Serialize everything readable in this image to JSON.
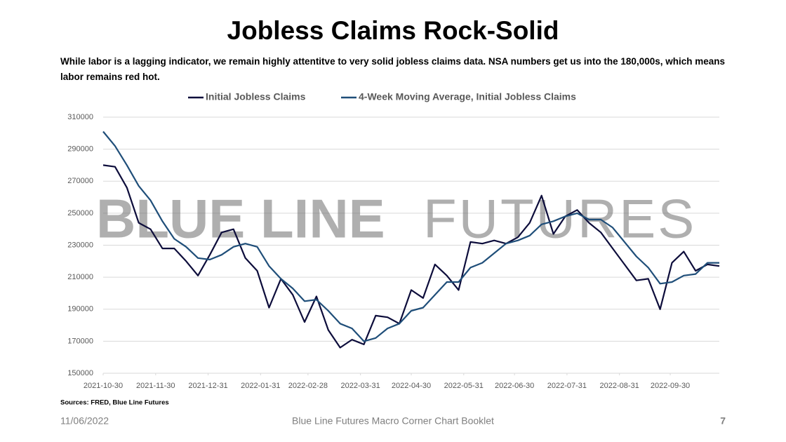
{
  "chart_data": {
    "type": "line",
    "title": "Jobless Claims Rock-Solid",
    "subtitle": "While labor is a lagging indicator, we remain highly attentitve to very solid jobless claims data. NSA numbers get us into the 180,000s, which means labor remains red hot.",
    "source": "Sources: FRED, Blue Line Futures",
    "watermark": [
      "BLUE LINE",
      "FUTURES"
    ],
    "x": [
      "2021-10-30",
      "2021-11-06",
      "2021-11-13",
      "2021-11-20",
      "2021-11-27",
      "2021-12-04",
      "2021-12-11",
      "2021-12-18",
      "2021-12-25",
      "2022-01-01",
      "2022-01-08",
      "2022-01-15",
      "2022-01-22",
      "2022-01-29",
      "2022-02-05",
      "2022-02-12",
      "2022-02-19",
      "2022-02-26",
      "2022-03-05",
      "2022-03-12",
      "2022-03-19",
      "2022-03-26",
      "2022-04-02",
      "2022-04-09",
      "2022-04-16",
      "2022-04-23",
      "2022-04-30",
      "2022-05-07",
      "2022-05-14",
      "2022-05-21",
      "2022-05-28",
      "2022-06-04",
      "2022-06-11",
      "2022-06-18",
      "2022-06-25",
      "2022-07-02",
      "2022-07-09",
      "2022-07-16",
      "2022-07-23",
      "2022-07-30",
      "2022-08-06",
      "2022-08-13",
      "2022-08-20",
      "2022-08-27",
      "2022-09-03",
      "2022-09-10",
      "2022-09-17",
      "2022-09-24",
      "2022-10-01",
      "2022-10-08",
      "2022-10-15",
      "2022-10-22",
      "2022-10-29"
    ],
    "series": [
      {
        "name": "Initial Jobless Claims",
        "color": "#0d0d3b",
        "values": [
          280000,
          279000,
          266000,
          244000,
          240000,
          228000,
          228000,
          220000,
          211000,
          224000,
          238000,
          240000,
          222000,
          214000,
          191000,
          209000,
          199000,
          182000,
          198000,
          177000,
          166000,
          171000,
          168000,
          186000,
          185000,
          181000,
          202000,
          197000,
          218000,
          211000,
          202000,
          232000,
          231000,
          233000,
          231000,
          235000,
          244000,
          261000,
          237000,
          248000,
          252000,
          244000,
          238000,
          228000,
          218000,
          208000,
          209000,
          190000,
          219000,
          226000,
          214000,
          218000,
          217000
        ]
      },
      {
        "name": "4-Week Moving Average, Initial Jobless Claims",
        "color": "#1f4e79",
        "values": [
          301000,
          292000,
          280000,
          267000,
          258000,
          245000,
          234000,
          229000,
          222000,
          221000,
          224000,
          229000,
          231000,
          229000,
          217000,
          209000,
          203000,
          195000,
          196000,
          189000,
          181000,
          178000,
          170000,
          172000,
          178000,
          181000,
          189000,
          191000,
          199000,
          207000,
          207000,
          216000,
          219000,
          225000,
          231000,
          233000,
          236000,
          243000,
          245000,
          248000,
          250000,
          246000,
          246000,
          241000,
          232000,
          223000,
          216000,
          206000,
          207000,
          211000,
          212000,
          219000,
          219000
        ]
      }
    ],
    "xlim": [
      "2021-10-30",
      "2022-10-29"
    ],
    "xticks": [
      "2021-10-30",
      "2021-11-30",
      "2021-12-31",
      "2022-01-31",
      "2022-02-28",
      "2022-03-31",
      "2022-04-30",
      "2022-05-31",
      "2022-06-30",
      "2022-07-31",
      "2022-08-31",
      "2022-09-30"
    ],
    "ylim": [
      150000,
      310000
    ],
    "yticks": [
      150000,
      170000,
      190000,
      210000,
      230000,
      250000,
      270000,
      290000,
      310000
    ],
    "grid": true,
    "legend": "top"
  },
  "footer": {
    "date": "11/06/2022",
    "title": "Blue Line Futures Macro Corner Chart Booklet",
    "page": "7"
  }
}
